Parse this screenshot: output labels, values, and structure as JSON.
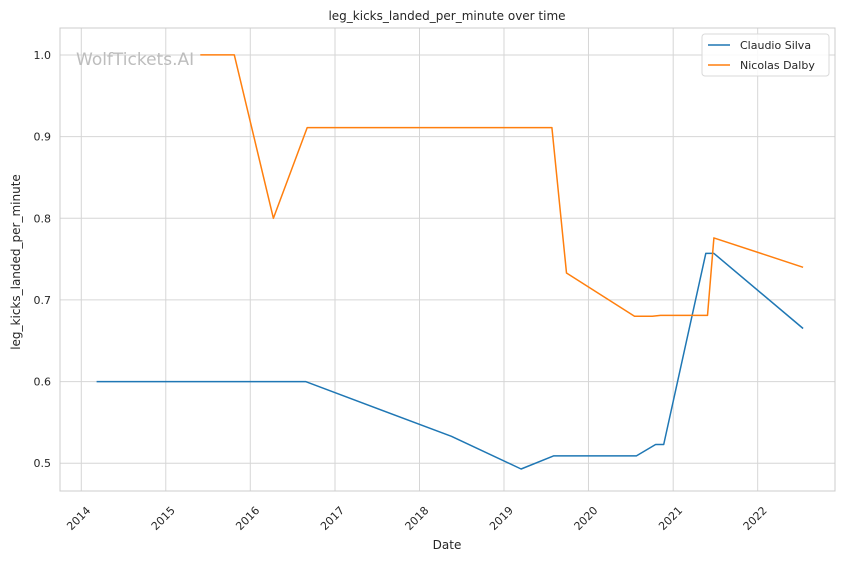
{
  "chart_data": {
    "type": "line",
    "title": "leg_kicks_landed_per_minute over time",
    "xlabel": "Date",
    "ylabel": "leg_kicks_landed_per_minute",
    "x_tick_labels": [
      "2014",
      "2015",
      "2016",
      "2017",
      "2018",
      "2019",
      "2020",
      "2021",
      "2022"
    ],
    "y_ticks": [
      0.5,
      0.6,
      0.7,
      0.8,
      0.9,
      1.0
    ],
    "y_tick_labels": [
      "0.5",
      "0.6",
      "0.7",
      "0.8",
      "0.9",
      "1.0"
    ],
    "xlim": [
      "2013-10-01",
      "2022-12-01"
    ],
    "ylim": [
      0.466,
      1.033
    ],
    "grid": true,
    "legend_position": "top-right",
    "watermark": "WolfTickets.AI",
    "series": [
      {
        "name": "Claudio Silva",
        "color": "#1f77b4",
        "points": [
          [
            "2014-03-08",
            0.6
          ],
          [
            "2016-08-27",
            0.6
          ],
          [
            "2018-05-19",
            0.533
          ],
          [
            "2019-03-16",
            0.493
          ],
          [
            "2019-08-03",
            0.509
          ],
          [
            "2020-07-26",
            0.509
          ],
          [
            "2020-10-17",
            0.523
          ],
          [
            "2020-11-21",
            0.523
          ],
          [
            "2021-05-22",
            0.757
          ],
          [
            "2021-06-26",
            0.757
          ],
          [
            "2022-07-16",
            0.665
          ]
        ]
      },
      {
        "name": "Nicolas Dalby",
        "color": "#ff7f0e",
        "points": [
          [
            "2015-05-30",
            1.0
          ],
          [
            "2015-10-24",
            1.0
          ],
          [
            "2016-04-10",
            0.8
          ],
          [
            "2016-09-03",
            0.911
          ],
          [
            "2019-07-27",
            0.911
          ],
          [
            "2019-09-28",
            0.733
          ],
          [
            "2020-07-18",
            0.68
          ],
          [
            "2020-10-03",
            0.68
          ],
          [
            "2020-11-07",
            0.681
          ],
          [
            "2021-05-29",
            0.681
          ],
          [
            "2021-06-26",
            0.776
          ],
          [
            "2022-07-16",
            0.74
          ]
        ]
      }
    ]
  }
}
